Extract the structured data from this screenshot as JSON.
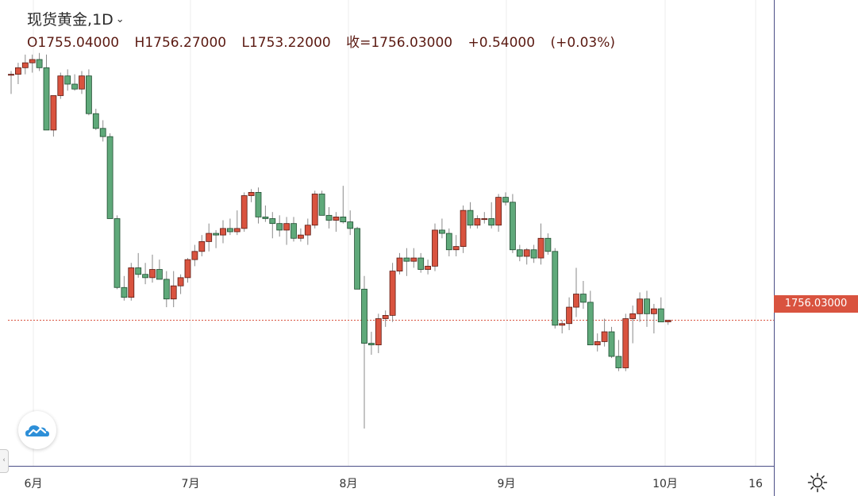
{
  "header": {
    "symbol": "现货黄金",
    "interval": "1D",
    "open": "O1755.04000",
    "high": "H1756.27000",
    "low": "L1753.22000",
    "close": "收=1756.03000",
    "change": "+0.54000",
    "change_pct": "(+0.03%)"
  },
  "price_tag": "1756.03000",
  "colors": {
    "up": "#d9533f",
    "down": "#5fa97a",
    "up_border": "#5c1a12",
    "down_border": "#1f4d30",
    "wick": "#8a8a8a",
    "price_line": "#d9533f",
    "grid": "#ececec",
    "axis": "#4b4f87"
  },
  "chart_data": {
    "type": "candlestick",
    "title": "现货黄金, 1D",
    "x_tick_labels": [
      "6月",
      "7月",
      "8月",
      "9月",
      "10月",
      "16"
    ],
    "ylim": [
      1670,
      1920
    ],
    "last_price": 1756.03,
    "candles": [
      [
        1906,
        1908,
        1894,
        1906
      ],
      [
        1906,
        1913,
        1900,
        1910
      ],
      [
        1910,
        1918,
        1906,
        1913
      ],
      [
        1913,
        1918,
        1907,
        1915
      ],
      [
        1915,
        1919,
        1908,
        1910
      ],
      [
        1910,
        1918,
        1872,
        1872
      ],
      [
        1872,
        1893,
        1868,
        1893
      ],
      [
        1893,
        1907,
        1891,
        1905
      ],
      [
        1905,
        1909,
        1896,
        1900
      ],
      [
        1900,
        1906,
        1896,
        1897
      ],
      [
        1897,
        1908,
        1894,
        1905
      ],
      [
        1905,
        1909,
        1881,
        1882
      ],
      [
        1882,
        1885,
        1872,
        1873
      ],
      [
        1873,
        1878,
        1865,
        1868
      ],
      [
        1868,
        1870,
        1818,
        1818
      ],
      [
        1818,
        1820,
        1775,
        1776
      ],
      [
        1776,
        1783,
        1768,
        1770
      ],
      [
        1770,
        1791,
        1768,
        1788
      ],
      [
        1788,
        1797,
        1782,
        1784
      ],
      [
        1784,
        1791,
        1778,
        1782
      ],
      [
        1782,
        1796,
        1779,
        1787
      ],
      [
        1787,
        1793,
        1783,
        1781
      ],
      [
        1781,
        1786,
        1764,
        1769
      ],
      [
        1769,
        1786,
        1764,
        1777
      ],
      [
        1777,
        1784,
        1772,
        1782
      ],
      [
        1782,
        1794,
        1779,
        1793
      ],
      [
        1793,
        1802,
        1789,
        1798
      ],
      [
        1798,
        1808,
        1795,
        1804
      ],
      [
        1804,
        1815,
        1798,
        1809
      ],
      [
        1809,
        1811,
        1800,
        1808
      ],
      [
        1808,
        1817,
        1803,
        1812
      ],
      [
        1812,
        1818,
        1808,
        1810
      ],
      [
        1810,
        1823,
        1808,
        1812
      ],
      [
        1812,
        1834,
        1810,
        1832
      ],
      [
        1832,
        1836,
        1828,
        1834
      ],
      [
        1834,
        1837,
        1815,
        1819
      ],
      [
        1819,
        1826,
        1816,
        1818
      ],
      [
        1818,
        1822,
        1806,
        1815
      ],
      [
        1815,
        1820,
        1807,
        1811
      ],
      [
        1811,
        1819,
        1802,
        1815
      ],
      [
        1815,
        1819,
        1804,
        1806
      ],
      [
        1806,
        1812,
        1804,
        1808
      ],
      [
        1808,
        1818,
        1802,
        1814
      ],
      [
        1814,
        1835,
        1812,
        1833
      ],
      [
        1833,
        1835,
        1820,
        1820
      ],
      [
        1820,
        1825,
        1812,
        1817
      ],
      [
        1817,
        1822,
        1810,
        1819
      ],
      [
        1819,
        1838,
        1815,
        1816
      ],
      [
        1816,
        1823,
        1808,
        1812
      ],
      [
        1812,
        1813,
        1777,
        1775
      ],
      [
        1775,
        1783,
        1690,
        1742
      ],
      [
        1742,
        1749,
        1735,
        1741
      ],
      [
        1741,
        1760,
        1736,
        1757
      ],
      [
        1757,
        1762,
        1752,
        1759
      ],
      [
        1759,
        1791,
        1755,
        1786
      ],
      [
        1786,
        1797,
        1784,
        1794
      ],
      [
        1794,
        1800,
        1783,
        1792
      ],
      [
        1792,
        1800,
        1788,
        1794
      ],
      [
        1794,
        1797,
        1785,
        1787
      ],
      [
        1787,
        1793,
        1784,
        1789
      ],
      [
        1789,
        1815,
        1786,
        1811
      ],
      [
        1811,
        1818,
        1806,
        1809
      ],
      [
        1809,
        1812,
        1795,
        1799
      ],
      [
        1799,
        1808,
        1795,
        1801
      ],
      [
        1801,
        1826,
        1797,
        1823
      ],
      [
        1823,
        1828,
        1812,
        1814
      ],
      [
        1814,
        1820,
        1812,
        1818
      ],
      [
        1818,
        1822,
        1815,
        1818
      ],
      [
        1818,
        1828,
        1812,
        1814
      ],
      [
        1814,
        1833,
        1810,
        1831
      ],
      [
        1831,
        1834,
        1826,
        1828
      ],
      [
        1828,
        1833,
        1797,
        1799
      ],
      [
        1799,
        1802,
        1792,
        1795
      ],
      [
        1795,
        1800,
        1790,
        1799
      ],
      [
        1799,
        1802,
        1791,
        1794
      ],
      [
        1794,
        1815,
        1790,
        1806
      ],
      [
        1806,
        1809,
        1796,
        1798
      ],
      [
        1798,
        1800,
        1751,
        1753
      ],
      [
        1753,
        1756,
        1748,
        1754
      ],
      [
        1754,
        1770,
        1750,
        1764
      ],
      [
        1764,
        1788,
        1758,
        1772
      ],
      [
        1772,
        1780,
        1763,
        1767
      ],
      [
        1767,
        1774,
        1741,
        1741
      ],
      [
        1741,
        1748,
        1737,
        1743
      ],
      [
        1743,
        1757,
        1740,
        1749
      ],
      [
        1749,
        1752,
        1733,
        1734
      ],
      [
        1734,
        1744,
        1725,
        1727
      ],
      [
        1727,
        1760,
        1725,
        1757
      ],
      [
        1757,
        1765,
        1742,
        1760
      ],
      [
        1760,
        1773,
        1755,
        1769
      ],
      [
        1769,
        1774,
        1752,
        1760
      ],
      [
        1760,
        1766,
        1748,
        1763
      ],
      [
        1763,
        1770,
        1755,
        1755
      ],
      [
        1755.04,
        1756.27,
        1753.22,
        1756.03
      ]
    ]
  }
}
